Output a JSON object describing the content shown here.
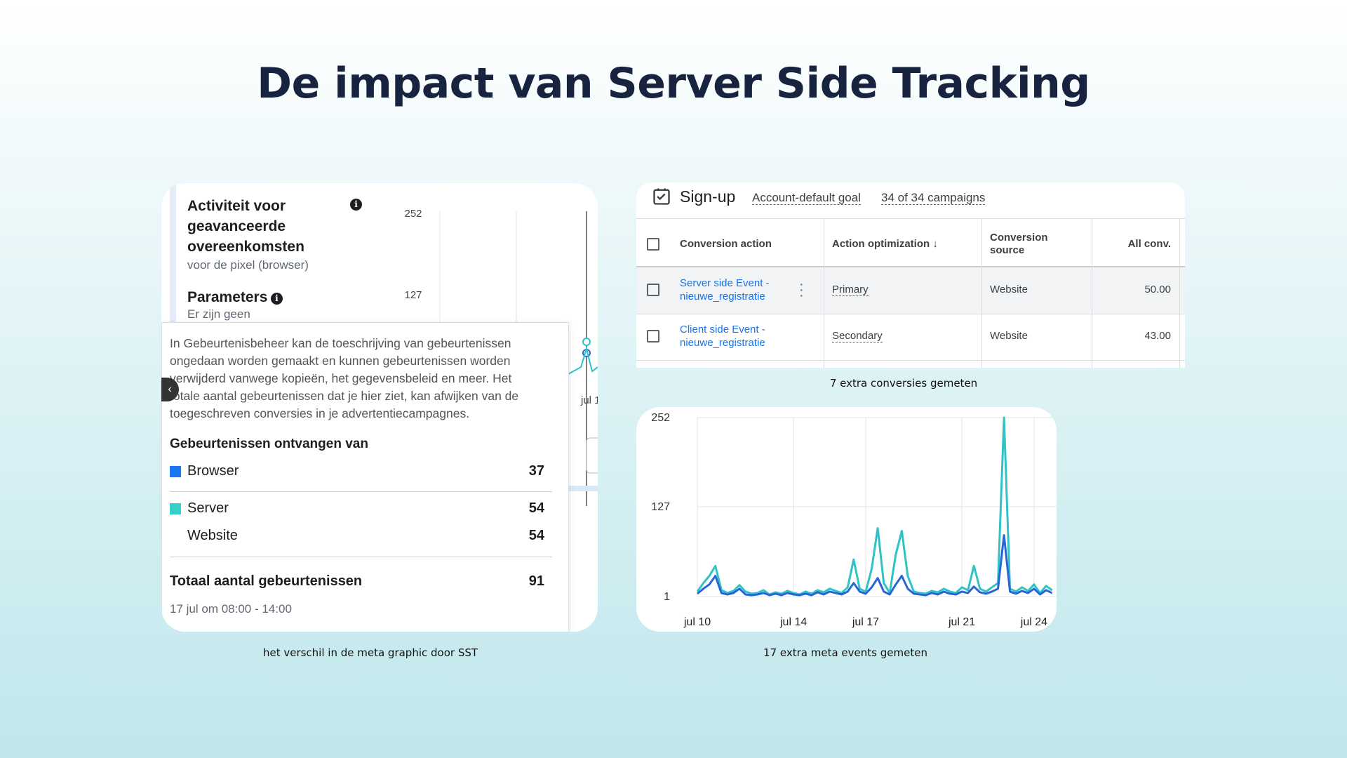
{
  "title": "De impact van Server Side Tracking",
  "meta_panel": {
    "heading_lines": [
      "Activiteit voor",
      "geavanceerde",
      "overeenkomsten"
    ],
    "subheading": "voor de pixel (browser)",
    "parameters": "Parameters",
    "parameters_note": "Er zijn geen",
    "yticks": [
      252,
      127
    ],
    "x_label": "jul 1",
    "tooltip": {
      "text_lines": [
        "In Gebeurtenisbeheer kan de toeschrijving van gebeurtenissen",
        "ongedaan worden gemaakt en kunnen gebeurtenissen worden",
        "verwijderd vanwege kopieën, het gegevensbeleid en meer. Het",
        "totale aantal gebeurtenissen dat je hier ziet, kan afwijken van de",
        "toegeschreven conversies in je advertentiecampagnes."
      ],
      "heading": "Gebeurtenissen ontvangen van",
      "rows": [
        {
          "label": "Browser",
          "value": 37
        },
        {
          "label": "Server",
          "value": 54
        },
        {
          "label": "Website",
          "value": 54
        }
      ],
      "total": {
        "label": "Totaal aantal gebeurtenissen",
        "value": 91
      },
      "time": "17 jul om 08:00 - 14:00"
    },
    "caption": "het verschil in de meta graphic door SST"
  },
  "ads_table": {
    "goal": "Sign-up",
    "goal_type": "Account-default goal",
    "campaigns": "34 of 34 campaigns",
    "columns": [
      [
        "Conversion action"
      ],
      [
        "Action optimization"
      ],
      [
        "Conversion",
        "source"
      ],
      [
        "All conv."
      ]
    ],
    "rows": [
      [
        [
          "Server side Event -",
          "nieuwe_registratie"
        ],
        "Primary",
        "Website",
        "50.00"
      ],
      [
        [
          "Client side Event -",
          "nieuwe_registratie"
        ],
        "Secondary",
        "Website",
        "43.00"
      ]
    ],
    "caption": "7 extra conversies gemeten"
  },
  "chart_data": {
    "type": "line",
    "categories": [
      "jul 10",
      null,
      null,
      null,
      null,
      null,
      null,
      null,
      null,
      null,
      null,
      null,
      null,
      null,
      null,
      null,
      "jul 14",
      null,
      null,
      null,
      null,
      null,
      null,
      null,
      null,
      null,
      null,
      null,
      "jul 17",
      null,
      null,
      null,
      null,
      null,
      null,
      null,
      null,
      null,
      null,
      null,
      null,
      null,
      null,
      null,
      "jul 21",
      null,
      null,
      null,
      null,
      null,
      null,
      null,
      null,
      null,
      null,
      null,
      "jul 24",
      null,
      null,
      null
    ],
    "series": [
      {
        "color": "#2fc2c6",
        "values": [
          8,
          20,
          30,
          44,
          10,
          6,
          9,
          17,
          8,
          5,
          6,
          10,
          4,
          7,
          5,
          9,
          6,
          4,
          8,
          5,
          10,
          7,
          12,
          9,
          6,
          14,
          53,
          12,
          8,
          40,
          97,
          20,
          6,
          60,
          93,
          30,
          8,
          6,
          5,
          9,
          7,
          12,
          8,
          6,
          14,
          10,
          44,
          12,
          8,
          14,
          20,
          252,
          12,
          8,
          14,
          9,
          18,
          6,
          16,
          10
        ]
      },
      {
        "color": "#2866d6",
        "values": [
          5,
          12,
          18,
          30,
          6,
          4,
          6,
          12,
          4,
          3,
          4,
          6,
          3,
          5,
          3,
          6,
          4,
          3,
          5,
          3,
          7,
          4,
          8,
          6,
          4,
          8,
          20,
          8,
          5,
          14,
          27,
          8,
          4,
          18,
          30,
          12,
          5,
          4,
          3,
          6,
          4,
          8,
          5,
          4,
          8,
          6,
          15,
          7,
          5,
          8,
          12,
          87,
          8,
          5,
          9,
          6,
          12,
          4,
          10,
          6
        ]
      }
    ],
    "ylim": [
      1,
      252
    ],
    "yticks": [
      1,
      127,
      252
    ],
    "grid": true,
    "caption": "17 extra meta events gemeten"
  }
}
